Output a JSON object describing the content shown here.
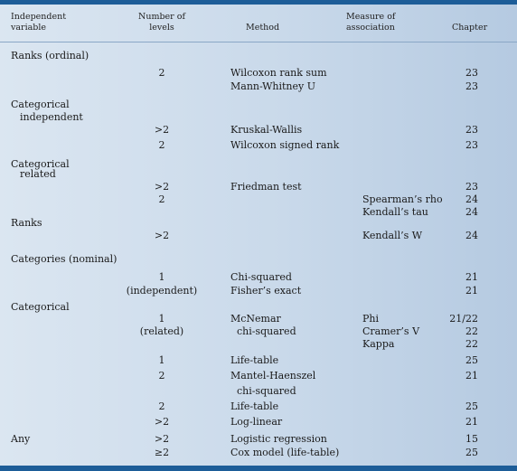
{
  "header": {
    "independent": [
      "Independent",
      "variable"
    ],
    "levels": [
      "Number of",
      "levels"
    ],
    "method": "Method",
    "measure": [
      "Measure of",
      "association"
    ],
    "chapter": "Chapter"
  },
  "rows": [
    {
      "type": "group",
      "label": "Ranks (ordinal)"
    },
    {
      "type": "data",
      "levels": "2",
      "method": "Wilcoxon rank sum",
      "measure": "",
      "chapter": "23"
    },
    {
      "type": "data",
      "levels": "",
      "method": "Mann-Whitney U",
      "measure": "",
      "chapter": "23"
    },
    {
      "type": "group",
      "label": "Categorical"
    },
    {
      "type": "sub",
      "label": "independent"
    },
    {
      "type": "data",
      "levels": ">2",
      "method": "Kruskal-Wallis",
      "measure": "",
      "chapter": "23"
    },
    {
      "type": "data",
      "levels": "2",
      "method": "Wilcoxon signed rank",
      "measure": "",
      "chapter": "23"
    },
    {
      "type": "group",
      "label": "Categorical"
    },
    {
      "type": "sub",
      "label": "related"
    },
    {
      "type": "data",
      "levels": ">2",
      "method": "Friedman test",
      "measure": "",
      "chapter": "23"
    },
    {
      "type": "data",
      "levels": "2",
      "method": "",
      "measure": "Spearman’s rho",
      "chapter": "24"
    },
    {
      "type": "data",
      "levels": "",
      "method": "",
      "measure": "Kendall’s tau",
      "chapter": "24"
    },
    {
      "type": "group",
      "label": "Ranks"
    },
    {
      "type": "data",
      "levels": ">2",
      "method": "",
      "measure": "Kendall’s W",
      "chapter": "24"
    },
    {
      "type": "group",
      "label": "Categories (nominal)"
    },
    {
      "type": "data",
      "levels": "1",
      "method": "Chi-squared",
      "measure": "",
      "chapter": "21"
    },
    {
      "type": "data",
      "levels": "(independent)",
      "method": "Fisher’s exact",
      "measure": "",
      "chapter": "21"
    },
    {
      "type": "group",
      "label": "Categorical"
    },
    {
      "type": "data",
      "levels": "1",
      "method": "McNemar",
      "measure": "Phi",
      "chapter": "21/22"
    },
    {
      "type": "data",
      "levels": "(related)",
      "method": "  chi-squared",
      "measure": "Cramer’s V",
      "chapter": "22"
    },
    {
      "type": "data",
      "levels": "",
      "method": "",
      "measure": "Kappa",
      "chapter": "22"
    },
    {
      "type": "data",
      "levels": "1",
      "method": "Life-table",
      "measure": "",
      "chapter": "25"
    },
    {
      "type": "data",
      "levels": "2",
      "method": "Mantel-Haenszel",
      "measure": "",
      "chapter": "21"
    },
    {
      "type": "data",
      "levels": "",
      "method": "  chi-squared",
      "measure": "",
      "chapter": ""
    },
    {
      "type": "data",
      "levels": "2",
      "method": "Life-table",
      "measure": "",
      "chapter": "25"
    },
    {
      "type": "data",
      "levels": ">2",
      "method": "Log-linear",
      "measure": "",
      "chapter": "21"
    },
    {
      "type": "data",
      "group": "Any",
      "levels": ">2",
      "method": "Logistic regression",
      "measure": "",
      "chapter": "15"
    },
    {
      "type": "data",
      "levels": "≥2",
      "method": "Cox model (life-table)",
      "measure": "",
      "chapter": "25"
    }
  ]
}
